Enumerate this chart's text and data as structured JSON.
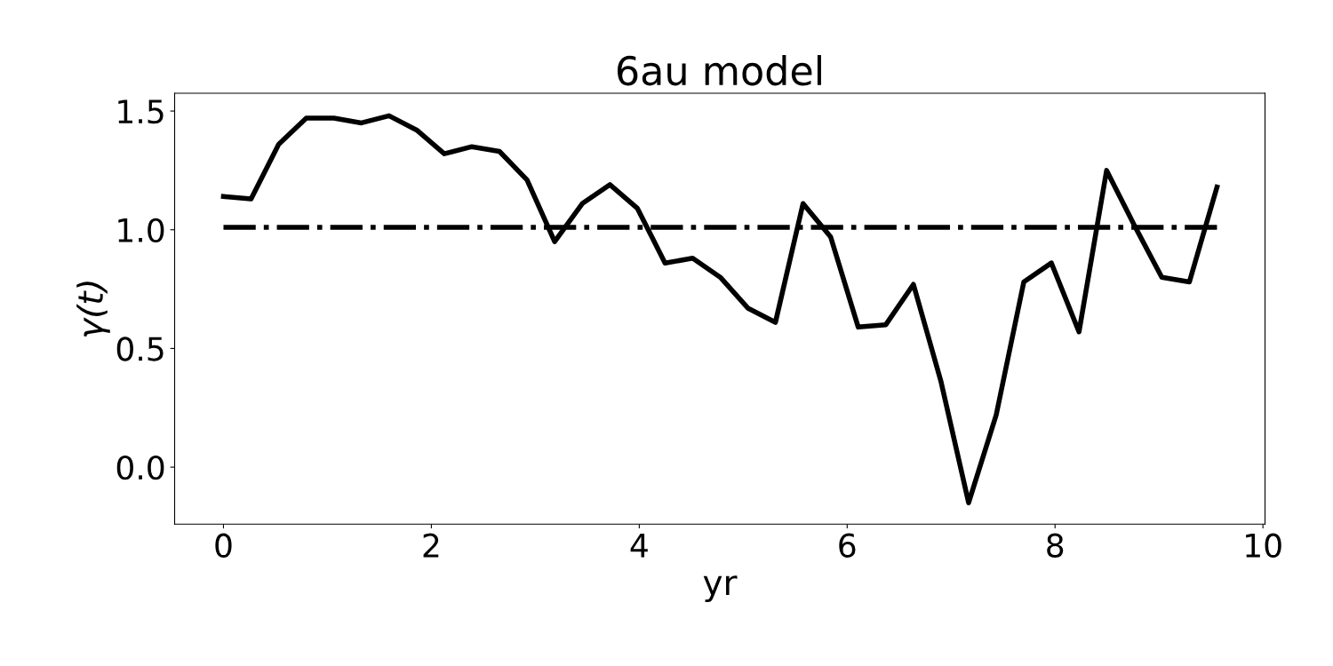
{
  "chart_data": {
    "type": "line",
    "title": "6au model",
    "xlabel": "yr",
    "ylabel": "γ(t)",
    "xlim": [
      -0.47,
      10.02
    ],
    "ylim": [
      -0.24,
      1.575
    ],
    "xticks": [
      0,
      2,
      4,
      6,
      8,
      10
    ],
    "yticks": [
      {
        "value": 0,
        "label": "0.0"
      },
      0.5,
      {
        "value": 1,
        "label": "1.0"
      },
      1.5
    ],
    "grid": false,
    "legend": false,
    "marker": "none",
    "series": [
      {
        "color": "#000000",
        "line_style": "solid",
        "x": [
          0,
          0.2655,
          0.531,
          0.7965,
          1.062,
          1.3275,
          1.593,
          1.8585,
          2.124,
          2.3895,
          2.655,
          2.9205,
          3.186,
          3.4515,
          3.717,
          3.9825,
          4.248,
          4.5135,
          4.779,
          5.0445,
          5.31,
          5.5755,
          5.841,
          6.1065,
          6.372,
          6.6375,
          6.903,
          7.1685,
          7.434,
          7.6995,
          7.965,
          8.2305,
          8.496,
          8.7615,
          9.027,
          9.2925,
          9.558
        ],
        "values": [
          1.14,
          1.13,
          1.36,
          1.47,
          1.47,
          1.45,
          1.48,
          1.42,
          1.32,
          1.35,
          1.33,
          1.21,
          0.95,
          1.11,
          1.19,
          1.09,
          0.86,
          0.88,
          0.8,
          0.67,
          0.61,
          1.11,
          0.97,
          0.59,
          0.6,
          0.77,
          0.36,
          -0.15,
          0.22,
          0.78,
          0.86,
          0.57,
          1.25,
          1.02,
          0.8,
          0.78,
          1.18
        ]
      },
      {
        "color": "#000000",
        "line_style": "dashdot",
        "x": [
          0,
          9.558
        ],
        "values": [
          1.01,
          1.01
        ]
      }
    ]
  }
}
